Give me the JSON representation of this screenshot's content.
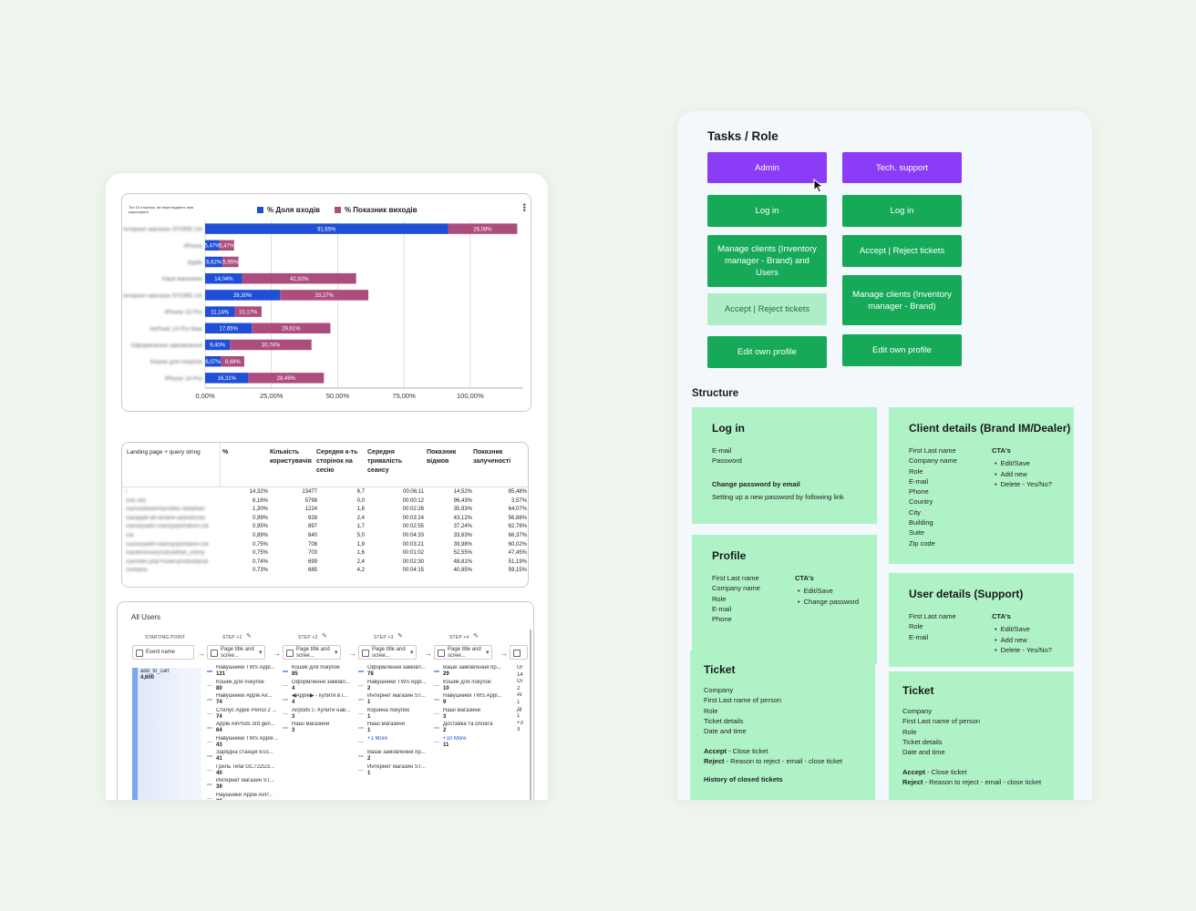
{
  "chart": {
    "title": "Топ 10 сторінок, які переглядають нові користувачі",
    "legend": [
      {
        "label": "% Доля входів",
        "color": "#1f4fd6"
      },
      {
        "label": "% Показник виходів",
        "color": "#ad4d7e"
      }
    ]
  },
  "chart_data": {
    "type": "bar",
    "orientation": "horizontal",
    "stacked": true,
    "categories": [
      "Інтернет-магазин STORE.UA",
      "iPhone",
      "Apple",
      "Наші магазини",
      "Інтернет-магазин STORE.UA",
      "iPhone 15 Pro",
      "AirPods 14 Pro Max",
      "Оформлення замовлення",
      "Кошик для покупок",
      "iPhone 14 Pro"
    ],
    "series": [
      {
        "name": "% Доля входів",
        "color": "#1f4fd6",
        "values": [
          91.65,
          5.47,
          6.62,
          14.04,
          28.3,
          11.14,
          17.65,
          9.4,
          6.07,
          16.31
        ],
        "labels": [
          "91,65%",
          "5,47%",
          "6,62%",
          "14,04%",
          "28,30%",
          "11,14%",
          "17,65%",
          "9,40%",
          "6,07%",
          "16,31%"
        ]
      },
      {
        "name": "% Показник виходів",
        "color": "#ad4d7e",
        "values": [
          26.08,
          5.47,
          5.95,
          42.92,
          33.27,
          10.17,
          29.61,
          30.74,
          8.69,
          28.49
        ],
        "labels": [
          "26,08%",
          "5,47%",
          "5,95%",
          "42,92%",
          "33,27%",
          "10,17%",
          "29,61%",
          "30,74%",
          "8,69%",
          "28,49%"
        ]
      }
    ],
    "xlim": [
      0,
      120
    ],
    "xticks": [
      0,
      25,
      50,
      75,
      100
    ],
    "xtick_labels": [
      "0,00%",
      "25,00%",
      "50,00%",
      "75,00%",
      "100,00%"
    ],
    "grid": true,
    "legend_position": "top"
  },
  "table": {
    "headers": [
      "Landing page + query string",
      "%",
      "Кількість користувачів",
      "Середня к-ть сторінок на сесію",
      "Середня тривалість сеансу",
      "Показник відмов",
      "Показник залученості"
    ],
    "rows": [
      [
        "/",
        "14,32%",
        "13477",
        "6,7",
        "00:06:11",
        "14,52%",
        "85,48%"
      ],
      [
        "(not set)",
        "6,16%",
        "5798",
        "0,0",
        "00:00:12",
        "96,43%",
        "3,57%"
      ],
      [
        "/ua/noutbuki/macs/bez-obladnan",
        "1,30%",
        "1224",
        "1,6",
        "00:02:26",
        "35,93%",
        "64,07%"
      ],
      [
        "/ua/apple-all-ukraine-airpods/nav",
        "0,99%",
        "928",
        "2,4",
        "00:03:24",
        "43,12%",
        "56,88%"
      ],
      [
        "/ua/zaryadni-stanciyi/portativni-zar",
        "0,95%",
        "897",
        "1,7",
        "00:02:55",
        "37,24%",
        "62,76%"
      ],
      [
        "/ua",
        "0,89%",
        "840",
        "5,0",
        "00:04:33",
        "33,63%",
        "66,37%"
      ],
      [
        "/ua/zaryadni-stanciyi/portativni-zar",
        "0,75%",
        "708",
        "1,9",
        "00:03:21",
        "39,98%",
        "60,02%"
      ],
      [
        "/ua/aksesuary/zaryadnye_ustroy",
        "0,75%",
        "703",
        "1,6",
        "00:01:02",
        "52,55%",
        "47,45%"
      ],
      [
        "/ua/index.php?route=product/prod",
        "0,74%",
        "699",
        "2,4",
        "00:02:30",
        "48,81%",
        "51,19%"
      ],
      [
        "/contacts",
        "0,73%",
        "685",
        "4,2",
        "00:04:15",
        "40,85%",
        "59,15%"
      ]
    ]
  },
  "funnel": {
    "title": "All Users",
    "starting_point": "STARTING POINT",
    "start_box": "Event name",
    "start_event": {
      "name": "add_to_cart",
      "count": "4,600"
    },
    "steps": [
      {
        "label": "STEP +1",
        "box": "Page title and scree...",
        "items": [
          {
            "name": "Навушники TWS Appl...",
            "count": "121"
          },
          {
            "name": "Кошик для покупок",
            "count": "80"
          },
          {
            "name": "Навушники Apple Air...",
            "count": "74"
          },
          {
            "name": "Стилус Apple Pencil 2 ...",
            "count": "74"
          },
          {
            "name": "Apple AirPods 3rd gen...",
            "count": "64"
          },
          {
            "name": "Навушники TWS Apple ...",
            "count": "43"
          },
          {
            "name": "Зарядна станція Eco...",
            "count": "41"
          },
          {
            "name": "Гриль Tefal GC722D3...",
            "count": "40"
          },
          {
            "name": "Интернет магазин ST...",
            "count": "39"
          },
          {
            "name": "Наушники Apple AirP...",
            "count": "38"
          }
        ]
      },
      {
        "label": "STEP +2",
        "box": "Page title and scree...",
        "items": [
          {
            "name": "Кошик для покупок",
            "count": "85"
          },
          {
            "name": "Оформлення замовл...",
            "count": "4"
          },
          {
            "name": "◀Apple▶ - купити в і...",
            "count": "4"
          },
          {
            "name": "Airpods ▷ Купити нав...",
            "count": "3"
          },
          {
            "name": "Наші магазини",
            "count": "3"
          }
        ]
      },
      {
        "label": "STEP +3",
        "box": "Page title and scree...",
        "items": [
          {
            "name": "Оформлення замовл...",
            "count": "78"
          },
          {
            "name": "Навушники TWS Appl...",
            "count": "2"
          },
          {
            "name": "Интернет магазин ST...",
            "count": "1"
          },
          {
            "name": "Корзина покупок",
            "count": "1"
          },
          {
            "name": "Наші магазини",
            "count": "1"
          },
          {
            "name": "+1 More",
            "count": ""
          },
          {
            "name": "Ваше замовлення пр...",
            "count": "2"
          },
          {
            "name": "Интернет магазин ST...",
            "count": "1"
          }
        ]
      },
      {
        "label": "STEP +4",
        "box": "Page title and scree...",
        "items": [
          {
            "name": "Ваше замовлення пр...",
            "count": "29"
          },
          {
            "name": "Кошик для покупок",
            "count": "10"
          },
          {
            "name": "Навушники TWS Appl...",
            "count": "9"
          },
          {
            "name": "Наші магазини",
            "count": "3"
          },
          {
            "name": "Доставка та оплата",
            "count": "2"
          },
          {
            "name": "+10 More",
            "count": "11"
          }
        ]
      }
    ],
    "partial_col": [
      "Ur",
      "14",
      "Oi",
      "2",
      "Ar",
      "1",
      "Дi",
      "1",
      "+3",
      "3"
    ]
  },
  "tasks": {
    "title": "Tasks / Role",
    "admin": {
      "role": "Admin",
      "actions": [
        "Log in",
        "Manage clients (Inventory manager - Brand) and Users",
        "Accept | Reject tickets",
        "Edit own profile"
      ]
    },
    "support": {
      "role": "Tech. support",
      "actions": [
        "Log in",
        "Accept | Reject tickets",
        "Manage clients (Inventory manager - Brand)",
        "Edit own profile"
      ]
    }
  },
  "structure": {
    "title": "Structure",
    "login": {
      "title": "Log in",
      "fields": [
        "E-mail",
        "Password"
      ],
      "change_label": "Change password by email",
      "change_desc": "Setting up a new password by following link"
    },
    "client": {
      "title": "Client details (Brand IM/Dealer)",
      "fields": [
        "First Last name",
        "Company name",
        "Role",
        "E-mail",
        "Phone",
        "Country",
        "City",
        "Building",
        "Suite",
        "Zip code"
      ],
      "cta_label": "CTA's",
      "ctas": [
        "Edit/Save",
        "Add new",
        "Delete - Yes/No?"
      ]
    },
    "profile": {
      "title": "Profile",
      "fields": [
        "First Last name",
        "Company name",
        "Role",
        "E-mail",
        "Phone"
      ],
      "cta_label": "CTA's",
      "ctas": [
        "Edit/Save",
        "Change password"
      ]
    },
    "user": {
      "title": "User details (Support)",
      "fields": [
        "First Last name",
        "Role",
        "E-mail"
      ],
      "cta_label": "CTA's",
      "ctas": [
        "Edit/Save",
        "Add new",
        "Delete - Yes/No?"
      ]
    },
    "ticket_left": {
      "title": "Ticket",
      "fields": [
        "Company",
        "First Last name of person",
        "Role",
        "Ticket details",
        "Date and time"
      ],
      "accept_label": "Accept",
      "accept_desc": " - Close ticket",
      "reject_label": "Reject",
      "reject_desc": " - Reason to reject - email - close ticket",
      "history": "History of closed tickets"
    },
    "ticket_right": {
      "title": "Ticket",
      "fields": [
        "Company",
        "First Last name of person",
        "Role",
        "Ticket details",
        "Date and time"
      ],
      "accept_label": "Accept",
      "accept_desc": " - Close ticket",
      "reject_label": "Reject",
      "reject_desc": " - Reason to reject - email - close ticket"
    }
  }
}
